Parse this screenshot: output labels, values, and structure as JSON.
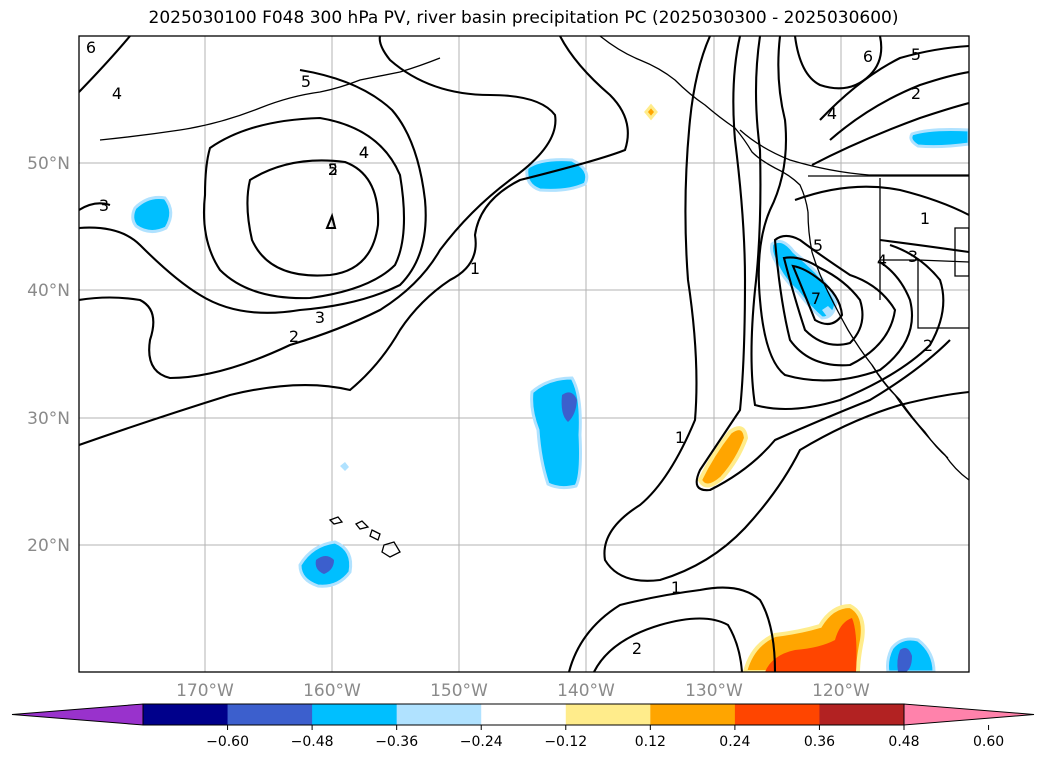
{
  "title": "2025030100 F048 300 hPa PV, river basin precipitation PC (2025030300 - 2025030600)",
  "map": {
    "lat_labels": [
      "50°N",
      "40°N",
      "30°N",
      "20°N"
    ],
    "lon_labels": [
      "170°W",
      "160°W",
      "150°W",
      "140°W",
      "130°W",
      "120°W"
    ],
    "contour_labels": [
      "4",
      "3",
      "6",
      "5",
      "2",
      "4",
      "5",
      "4",
      "1",
      "3",
      "2",
      "1",
      "5",
      "2",
      "4",
      "6",
      "5",
      "7",
      "1",
      "3",
      "4",
      "2",
      "1",
      "2"
    ]
  },
  "colorbar": {
    "colors": [
      "#9932cc",
      "#00008b",
      "#3c5fcd",
      "#00bfff",
      "#b0e2ff",
      "#ffffff",
      "#ffec8b",
      "#ffa500",
      "#ff4500",
      "#b22222",
      "#ff82ab"
    ],
    "ticks": [
      "−0.60",
      "−0.48",
      "−0.36",
      "−0.24",
      "−0.12",
      "0.12",
      "0.24",
      "0.36",
      "0.48",
      "0.60"
    ]
  }
}
